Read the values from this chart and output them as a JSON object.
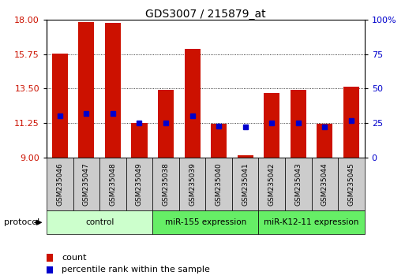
{
  "title": "GDS3007 / 215879_at",
  "samples": [
    "GSM235046",
    "GSM235047",
    "GSM235048",
    "GSM235049",
    "GSM235038",
    "GSM235039",
    "GSM235040",
    "GSM235041",
    "GSM235042",
    "GSM235043",
    "GSM235044",
    "GSM235045"
  ],
  "count_values": [
    15.8,
    17.85,
    17.8,
    11.25,
    13.4,
    16.1,
    11.2,
    9.15,
    13.2,
    13.4,
    11.2,
    13.6
  ],
  "percentile_values": [
    30,
    32,
    32,
    25,
    25,
    30,
    23,
    22,
    25,
    25,
    22,
    27
  ],
  "y_min": 9,
  "y_max": 18,
  "y_ticks": [
    9,
    11.25,
    13.5,
    15.75,
    18
  ],
  "y_right_ticks": [
    0,
    25,
    50,
    75,
    100
  ],
  "groups": [
    {
      "label": "control",
      "start": 0,
      "end": 4,
      "color": "#ccffcc"
    },
    {
      "label": "miR-155 expression",
      "start": 4,
      "end": 8,
      "color": "#66ee66"
    },
    {
      "label": "miR-K12-11 expression",
      "start": 8,
      "end": 12,
      "color": "#66ee66"
    }
  ],
  "bar_color": "#cc1100",
  "dot_color": "#0000cc",
  "bar_width": 0.6,
  "bg_color": "#ffffff",
  "grid_color": "#000000",
  "label_color_left": "#cc1100",
  "label_color_right": "#0000cc",
  "sample_box_color": "#cccccc",
  "protocol_label": "protocol"
}
